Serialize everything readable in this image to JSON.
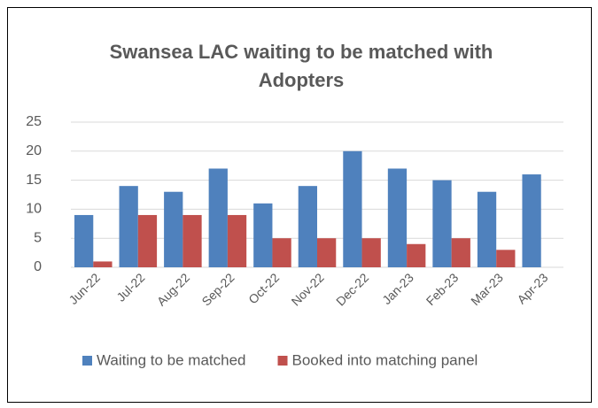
{
  "chart_data": {
    "type": "bar",
    "title": [
      "Swansea LAC waiting to be matched with",
      "Adopters"
    ],
    "categories": [
      "Jun-22",
      "Jul-22",
      "Aug-22",
      "Sep-22",
      "Oct-22",
      "Nov-22",
      "Dec-22",
      "Jan-23",
      "Feb-23",
      "Mar-23",
      "Apr-23"
    ],
    "series": [
      {
        "name": "Waiting to be matched",
        "color": "#4f81bd",
        "values": [
          9,
          14,
          13,
          17,
          11,
          14,
          20,
          17,
          15,
          13,
          16
        ]
      },
      {
        "name": "Booked into matching panel",
        "color": "#c0504d",
        "values": [
          1,
          9,
          9,
          9,
          5,
          5,
          5,
          4,
          5,
          3,
          null
        ]
      }
    ],
    "ylim": [
      0,
      25
    ],
    "yticks": [
      0,
      5,
      10,
      15,
      20,
      25
    ],
    "grid": true,
    "legend": "bottom"
  }
}
